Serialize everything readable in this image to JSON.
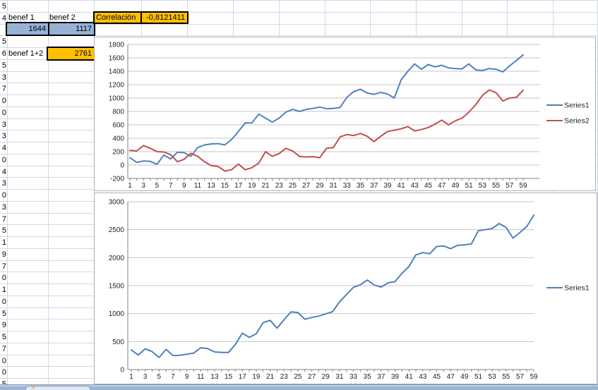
{
  "sheet": {
    "row_digits": [
      "5",
      "4",
      "",
      "5",
      "6",
      "5",
      "3",
      "7",
      "0",
      "0",
      "3",
      "3",
      "4",
      "0",
      "4",
      "3",
      "0",
      "3",
      "7",
      "5",
      "1",
      "9",
      "7",
      "0",
      "1",
      "0",
      "5",
      "9",
      "5",
      "7",
      "0",
      "0",
      "5"
    ],
    "cells": {
      "benef1_label": "benef 1",
      "benef2_label": "benef 2",
      "benef1_value": "1644",
      "benef2_value": "1117",
      "correlation_label": "Correlación",
      "correlation_value": "-0,8121411",
      "sum_label": "benef 1+2",
      "sum_value": "2761"
    },
    "colors": {
      "highlight_blue": "#95B3D7",
      "highlight_orange": "#FFC000",
      "grid_line": "#D0D7E5",
      "series_blue": "#4F81BD",
      "series_red": "#C0504D"
    },
    "tab_bar": {
      "new_sheet_star_icon": "✳"
    }
  },
  "chart_data": [
    {
      "type": "line",
      "title": "",
      "x": [
        1,
        2,
        3,
        4,
        5,
        6,
        7,
        8,
        9,
        10,
        11,
        12,
        13,
        14,
        15,
        16,
        17,
        18,
        19,
        20,
        21,
        22,
        23,
        24,
        25,
        26,
        27,
        28,
        29,
        30,
        31,
        32,
        33,
        34,
        35,
        36,
        37,
        38,
        39,
        40,
        41,
        42,
        43,
        44,
        45,
        46,
        47,
        48,
        49,
        50,
        51,
        52,
        53,
        54,
        55,
        56,
        57,
        58,
        59
      ],
      "x_tick_labels_shown": "odd numbers 1 to 59",
      "ylim": [
        -200,
        1800
      ],
      "ytick_step": 200,
      "grid": true,
      "legend_position": "right",
      "series": [
        {
          "name": "Series1",
          "color": "#4F81BD",
          "values": [
            110,
            40,
            60,
            55,
            10,
            150,
            90,
            190,
            185,
            130,
            260,
            300,
            315,
            320,
            300,
            380,
            500,
            630,
            630,
            760,
            700,
            640,
            700,
            790,
            830,
            800,
            830,
            845,
            865,
            840,
            845,
            860,
            1010,
            1095,
            1130,
            1075,
            1055,
            1085,
            1060,
            1000,
            1270,
            1400,
            1510,
            1430,
            1500,
            1465,
            1490,
            1450,
            1440,
            1435,
            1510,
            1420,
            1410,
            1440,
            1430,
            1390,
            1480,
            1560,
            1644
          ]
        },
        {
          "name": "Series2",
          "color": "#C0504D",
          "values": [
            220,
            210,
            290,
            250,
            200,
            195,
            155,
            50,
            85,
            175,
            130,
            50,
            -10,
            -20,
            -90,
            -70,
            15,
            -70,
            -40,
            30,
            200,
            130,
            170,
            250,
            210,
            130,
            120,
            125,
            110,
            250,
            260,
            420,
            455,
            440,
            470,
            430,
            350,
            430,
            500,
            520,
            540,
            575,
            510,
            530,
            560,
            610,
            670,
            600,
            660,
            700,
            790,
            900,
            1040,
            1120,
            1080,
            955,
            1000,
            1010,
            1117
          ]
        }
      ]
    },
    {
      "type": "line",
      "title": "",
      "x": [
        1,
        2,
        3,
        4,
        5,
        6,
        7,
        8,
        9,
        10,
        11,
        12,
        13,
        14,
        15,
        16,
        17,
        18,
        19,
        20,
        21,
        22,
        23,
        24,
        25,
        26,
        27,
        28,
        29,
        30,
        31,
        32,
        33,
        34,
        35,
        36,
        37,
        38,
        39,
        40,
        41,
        42,
        43,
        44,
        45,
        46,
        47,
        48,
        49,
        50,
        51,
        52,
        53,
        54,
        55,
        56,
        57,
        58,
        59
      ],
      "x_tick_labels_shown": "odd numbers 1 to 59",
      "ylim": [
        0,
        3000
      ],
      "ytick_step": 500,
      "grid": true,
      "legend_position": "right",
      "series": [
        {
          "name": "Series1",
          "color": "#4F81BD",
          "values": [
            350,
            260,
            370,
            320,
            215,
            360,
            250,
            255,
            275,
            295,
            390,
            375,
            315,
            305,
            305,
            450,
            650,
            575,
            640,
            840,
            880,
            740,
            890,
            1030,
            1020,
            900,
            930,
            955,
            995,
            1035,
            1210,
            1340,
            1470,
            1515,
            1600,
            1510,
            1475,
            1550,
            1570,
            1720,
            1840,
            2050,
            2090,
            2070,
            2200,
            2210,
            2160,
            2220,
            2230,
            2245,
            2480,
            2500,
            2520,
            2610,
            2540,
            2350,
            2450,
            2560,
            2761
          ]
        }
      ]
    }
  ]
}
